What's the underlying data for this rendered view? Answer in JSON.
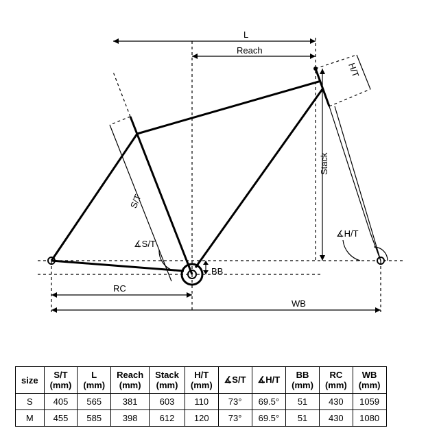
{
  "type": "diagram+table",
  "diagram": {
    "labels": {
      "L": "L",
      "Reach": "Reach",
      "HT": "H/T",
      "Stack": "Stack",
      "ST": "S/T",
      "aST": "∡S/T",
      "aHT": "∡H/T",
      "RC": "RC",
      "BB": "BB",
      "WB": "WB"
    }
  },
  "table": {
    "columns": [
      "size",
      "S/T (mm)",
      "L (mm)",
      "Reach (mm)",
      "Stack (mm)",
      "H/T (mm)",
      "∡S/T",
      "∡H/T",
      "BB (mm)",
      "RC (mm)",
      "WB (mm)"
    ],
    "rows": [
      [
        "S",
        "405",
        "565",
        "381",
        "603",
        "110",
        "73°",
        "69.5°",
        "51",
        "430",
        "1059"
      ],
      [
        "M",
        "455",
        "585",
        "398",
        "612",
        "120",
        "73°",
        "69.5°",
        "51",
        "430",
        "1080"
      ]
    ]
  }
}
